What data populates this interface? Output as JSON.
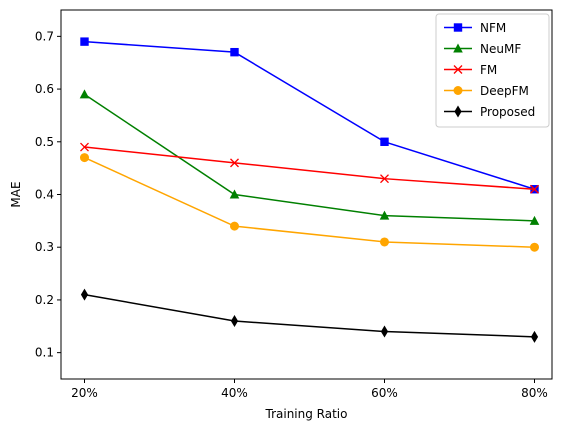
{
  "chart_data": {
    "type": "line",
    "x": [
      "20%",
      "40%",
      "60%",
      "80%"
    ],
    "xlabel": "Training Ratio",
    "ylabel": "MAE",
    "ylim": [
      0.05,
      0.75
    ],
    "yticks": [
      "0.1",
      "0.2",
      "0.3",
      "0.4",
      "0.5",
      "0.6",
      "0.7"
    ],
    "grid": false,
    "legend_position": "top-right",
    "series": [
      {
        "name": "NFM",
        "color": "#0000ff",
        "marker": "square",
        "values": [
          0.69,
          0.67,
          0.5,
          0.41
        ]
      },
      {
        "name": "NeuMF",
        "color": "#008000",
        "marker": "triangle",
        "values": [
          0.59,
          0.4,
          0.36,
          0.35
        ]
      },
      {
        "name": "FM",
        "color": "#ff0000",
        "marker": "x",
        "values": [
          0.49,
          0.46,
          0.43,
          0.41
        ]
      },
      {
        "name": "DeepFM",
        "color": "#ffa500",
        "marker": "circle",
        "values": [
          0.47,
          0.34,
          0.31,
          0.3
        ]
      },
      {
        "name": "Proposed",
        "color": "#000000",
        "marker": "diamond",
        "values": [
          0.21,
          0.16,
          0.14,
          0.13
        ]
      }
    ]
  }
}
